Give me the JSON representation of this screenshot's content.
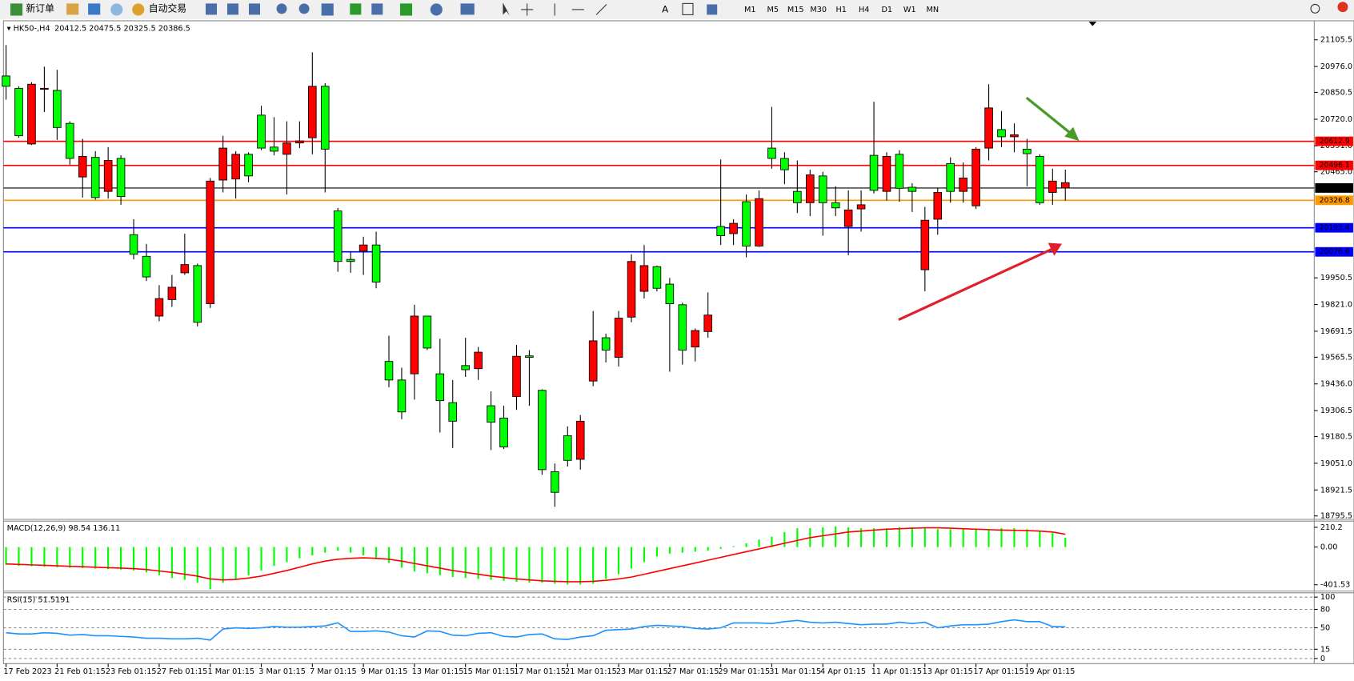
{
  "toolbar": {
    "new_order": "新订单",
    "auto_trading": "自动交易",
    "timeframes": [
      "M1",
      "M5",
      "M15",
      "M30",
      "H1",
      "H4",
      "D1",
      "W1",
      "MN"
    ]
  },
  "chart_data": [
    {
      "type": "candlestick",
      "title": "HK50-,H4",
      "categories": [
        "17 Feb 2023",
        null,
        null,
        null,
        "21 Feb 01:15",
        null,
        null,
        null,
        "23 Feb 01:15",
        null,
        null,
        null,
        "27 Feb 01:15",
        null,
        null,
        null,
        "1 Mar 01:15",
        null,
        null,
        null,
        "3 Mar 01:15",
        null,
        null,
        null,
        "7 Mar 01:15",
        null,
        null,
        null,
        "9 Mar 01:15",
        null,
        null,
        null,
        "13 Mar 01:15",
        null,
        null,
        null,
        "15 Mar 01:15",
        null,
        null,
        null,
        "17 Mar 01:15",
        null,
        null,
        null,
        "21 Mar 01:15",
        null,
        null,
        null,
        "23 Mar 01:15",
        null,
        null,
        null,
        "27 Mar 01:15",
        null,
        null,
        null,
        "29 Mar 01:15",
        null,
        null,
        null,
        "31 Mar 01:15",
        null,
        null,
        null,
        "4 Apr 01:15",
        null,
        null,
        null,
        "11 Apr 01:15",
        null,
        null,
        null,
        "13 Apr 01:15",
        null,
        null,
        null,
        "17 Apr 01:15",
        null,
        null,
        null,
        "19 Apr 01:15",
        null,
        null,
        null
      ],
      "candles": {
        "open": [
          20880,
          20640,
          20890,
          20870,
          20680,
          20530,
          20540,
          20340,
          20520,
          20345,
          20065,
          19955,
          19850,
          19905,
          20015,
          19735,
          20420,
          20580,
          20550,
          20445,
          20580,
          20565,
          20605,
          20615,
          20880,
          20575,
          20030,
          20030,
          20110,
          19930,
          19455,
          19300,
          19765,
          19610,
          19355,
          19255,
          19505,
          19590,
          19250,
          19130,
          19570,
          19565,
          19020,
          18910,
          19065,
          19255,
          19645,
          19600,
          19755,
          20030,
          20010,
          19900,
          19825,
          19600,
          19695,
          19770,
          20155,
          20215,
          20105,
          20335,
          20530,
          20475,
          20315,
          20450,
          20315,
          20290,
          20280,
          20305,
          20375,
          20540,
          20385,
          20370,
          20230,
          20365,
          20370,
          20435,
          20575,
          20775,
          20635,
          20645,
          20553,
          20315,
          20420,
          20412.5
        ],
        "high": [
          21080,
          20880,
          20900,
          20975,
          20960,
          20710,
          20625,
          20565,
          20585,
          20545,
          20235,
          20115,
          19915,
          19965,
          20165,
          20020,
          20435,
          20640,
          20565,
          20560,
          20785,
          20730,
          20710,
          20710,
          21045,
          20895,
          20290,
          20080,
          20150,
          20175,
          19670,
          19515,
          19820,
          19765,
          19655,
          19455,
          19660,
          19615,
          19400,
          19330,
          19625,
          19600,
          19410,
          19050,
          19230,
          19285,
          19790,
          19680,
          19790,
          20065,
          20110,
          20010,
          19950,
          19830,
          19705,
          19880,
          20525,
          20235,
          20355,
          20375,
          20780,
          20560,
          20520,
          20475,
          20465,
          20395,
          20375,
          20375,
          20805,
          20560,
          20570,
          20410,
          20295,
          20385,
          20535,
          20510,
          20585,
          20890,
          20760,
          20700,
          20625,
          20550,
          20480,
          20475.5
        ],
        "low": [
          20815,
          20630,
          20595,
          20755,
          20620,
          20500,
          20340,
          20330,
          20335,
          20305,
          20040,
          19935,
          19740,
          19810,
          19965,
          19715,
          19805,
          20365,
          20335,
          20415,
          20570,
          20545,
          20355,
          20580,
          20550,
          20365,
          19980,
          19975,
          19965,
          19900,
          19420,
          19265,
          19360,
          19600,
          19200,
          19125,
          19470,
          19455,
          19115,
          19120,
          19310,
          19330,
          18995,
          18840,
          19035,
          19020,
          19425,
          19540,
          19520,
          19735,
          19850,
          19885,
          19495,
          19530,
          19545,
          19660,
          20110,
          20110,
          20050,
          20100,
          20480,
          20405,
          20265,
          20250,
          20155,
          20250,
          20060,
          20175,
          20360,
          20325,
          20320,
          20270,
          19885,
          20160,
          20315,
          20315,
          20285,
          20520,
          20585,
          20560,
          20395,
          20305,
          20305,
          20325.5
        ],
        "close": [
          20930,
          20870,
          20600,
          20865,
          20860,
          20700,
          20440,
          20535,
          20370,
          20530,
          20160,
          20055,
          19765,
          19845,
          19975,
          20010,
          19825,
          20425,
          20430,
          20550,
          20740,
          20585,
          20550,
          20605,
          20630,
          20880,
          20275,
          20040,
          20080,
          20110,
          19545,
          19455,
          19485,
          19765,
          19485,
          19345,
          19525,
          19510,
          19330,
          19270,
          19375,
          19572,
          19405,
          19010,
          19185,
          19070,
          19450,
          19660,
          19565,
          19760,
          19885,
          20005,
          19920,
          19820,
          19615,
          19690,
          20200,
          20165,
          20320,
          20105,
          20580,
          20530,
          20370,
          20315,
          20445,
          20315,
          20200,
          20285,
          20545,
          20370,
          20550,
          20390,
          19990,
          20235,
          20505,
          20370,
          20300,
          20580,
          20670,
          20635,
          20575,
          20540,
          20365,
          20386.5
        ]
      },
      "up_color": "#00ff00",
      "down_color": "#ff0000",
      "ylim": [
        18783,
        21193.5
      ],
      "yticks": [
        21105.5,
        {
          "value": 20976,
          "label": "20976.0"
        },
        20850.5,
        {
          "value": 20720,
          "label": "20720.0"
        },
        {
          "value": 20591,
          "label": "20591.0"
        },
        {
          "value": 20465,
          "label": "20465.0"
        },
        19950.5,
        {
          "value": 19821,
          "label": "19821.0"
        },
        19691.5,
        19565.5,
        {
          "value": 19436,
          "label": "19436.0"
        },
        19306.5,
        19180.5,
        {
          "value": 19051,
          "label": "19051.0"
        },
        18921.5,
        18795.5
      ],
      "levels": [
        {
          "value": 20612.9,
          "color": "#ff0000"
        },
        {
          "value": 20496.1,
          "color": "#ff0000"
        },
        {
          "value": 20326.8,
          "color": "#ff9900"
        },
        {
          "value": 20193.4,
          "color": "#0000ff"
        },
        {
          "value": 20076.6,
          "color": "#0000ff"
        }
      ]
    },
    {
      "type": "macd",
      "title": "MACD(12,26,9)",
      "histogram": [
        -190,
        -200,
        -205,
        -210,
        -215,
        -220,
        -225,
        -230,
        -235,
        -240,
        -250,
        -270,
        -300,
        -330,
        -350,
        -380,
        -450,
        -380,
        -340,
        -300,
        -250,
        -200,
        -160,
        -120,
        -90,
        -60,
        -40,
        -60,
        -90,
        -130,
        -170,
        -220,
        -260,
        -280,
        -300,
        -320,
        -330,
        -340,
        -350,
        -360,
        -370,
        -380,
        -380,
        -390,
        -400,
        -400,
        -390,
        -340,
        -290,
        -230,
        -160,
        -100,
        -70,
        -60,
        -50,
        -40,
        -20,
        10,
        40,
        80,
        110,
        160,
        200,
        200,
        210,
        220,
        210,
        200,
        200,
        200,
        210,
        210,
        210,
        190,
        190,
        200,
        190,
        190,
        200,
        200,
        190,
        170,
        150,
        98.54
      ],
      "signal": [
        -180,
        -185,
        -190,
        -195,
        -200,
        -205,
        -210,
        -215,
        -220,
        -225,
        -230,
        -240,
        -255,
        -270,
        -290,
        -310,
        -340,
        -350,
        -345,
        -330,
        -310,
        -280,
        -250,
        -215,
        -180,
        -150,
        -130,
        -120,
        -115,
        -120,
        -130,
        -150,
        -175,
        -200,
        -225,
        -250,
        -270,
        -290,
        -310,
        -325,
        -340,
        -350,
        -360,
        -365,
        -370,
        -370,
        -365,
        -355,
        -340,
        -320,
        -290,
        -260,
        -230,
        -200,
        -170,
        -140,
        -110,
        -80,
        -50,
        -20,
        10,
        40,
        70,
        100,
        120,
        140,
        160,
        170,
        180,
        190,
        195,
        200,
        205,
        205,
        200,
        195,
        190,
        185,
        180,
        178,
        175,
        170,
        160,
        136.11
      ],
      "histogram_color": "#00ff00",
      "signal_color": "#ff0000",
      "ylim": [
        -460,
        267
      ],
      "yticks": [
        210.2,
        {
          "value": 0,
          "label": "0.00"
        },
        -401.53
      ]
    },
    {
      "type": "rsi",
      "title": "RSI(15)",
      "values": [
        42,
        40,
        40,
        42,
        41,
        38,
        39,
        37,
        37,
        36,
        35,
        33,
        33,
        32,
        32,
        33,
        30,
        48,
        50,
        49,
        50,
        52,
        51,
        51,
        52,
        53,
        58,
        44,
        44,
        45,
        43,
        37,
        35,
        45,
        44,
        38,
        37,
        41,
        42,
        36,
        35,
        39,
        40,
        32,
        31,
        35,
        37,
        46,
        47,
        48,
        52,
        54,
        53,
        52,
        49,
        48,
        50,
        58,
        58,
        58,
        57,
        60,
        62,
        59,
        58,
        59,
        57,
        55,
        56,
        56,
        59,
        57,
        59,
        50,
        53,
        55,
        55,
        56,
        60,
        63,
        60,
        60,
        52,
        51.5191
      ],
      "color": "#1e90ff",
      "ylim": [
        -1.4,
        105.6
      ],
      "yticks": [
        100,
        80,
        50,
        15,
        0
      ]
    }
  ]
}
